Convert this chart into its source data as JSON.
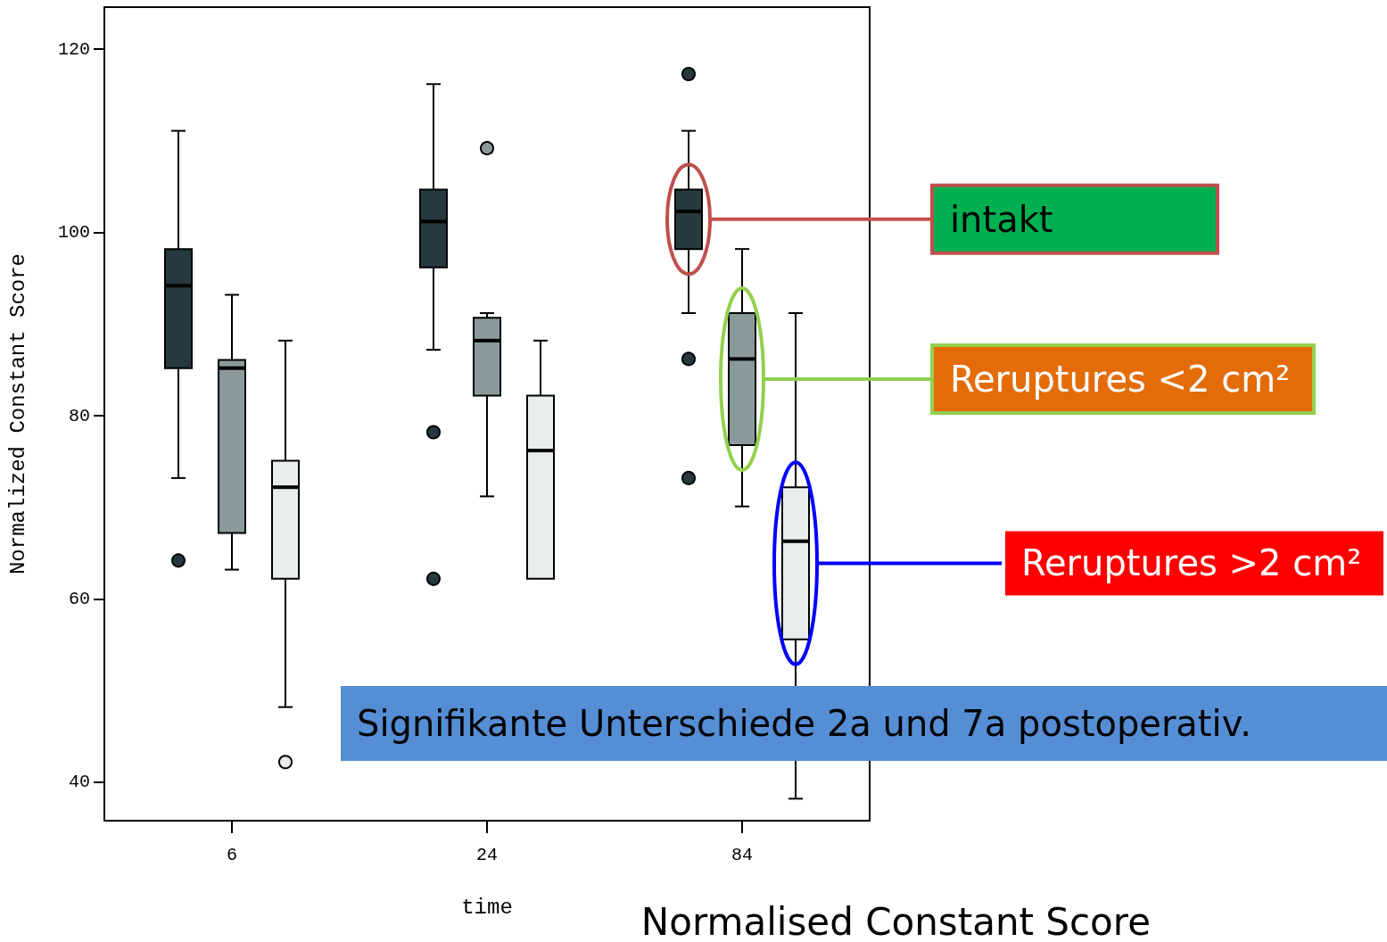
{
  "chart_data": {
    "type": "box",
    "title": "Normalised Constant Score",
    "xlabel": "time",
    "ylabel": "Normalized Constant Score",
    "categories": [
      "6",
      "24",
      "84"
    ],
    "ylim": [
      35.8,
      124.6
    ],
    "yticks": [
      40,
      60,
      80,
      100,
      120
    ],
    "grid": false,
    "legend": false,
    "series": [
      {
        "name": "intakt",
        "color": "#263a3e",
        "boxes": [
          {
            "low": 73.2,
            "q1": 85.2,
            "median": 94.2,
            "q3": 98.2,
            "high": 111.1,
            "outliers": [
              64.2
            ]
          },
          {
            "low": 87.2,
            "q1": 96.2,
            "median": 101.2,
            "q3": 104.7,
            "high": 116.2,
            "outliers": [
              78.2,
              62.2
            ]
          },
          {
            "low": 91.2,
            "q1": 98.2,
            "median": 102.3,
            "q3": 104.7,
            "high": 111.1,
            "outliers": [
              117.3,
              86.2,
              73.2
            ]
          }
        ]
      },
      {
        "name": "Reruptures <2 cm²",
        "color": "#8a9a9a",
        "boxes": [
          {
            "low": 63.2,
            "q1": 67.2,
            "median": 85.2,
            "q3": 86.1,
            "high": 93.2
          },
          {
            "low": 71.2,
            "q1": 82.2,
            "median": 88.2,
            "q3": 90.7,
            "high": 91.2,
            "outliers": [
              109.2
            ]
          },
          {
            "low": 70.1,
            "q1": 76.8,
            "median": 86.2,
            "q3": 91.2,
            "high": 98.2
          }
        ]
      },
      {
        "name": "Reruptures >2 cm²",
        "color": "#e8eeee",
        "boxes": [
          {
            "low": 48.2,
            "q1": 62.2,
            "median": 72.2,
            "q3": 75.1,
            "high": 88.2,
            "outliers": [
              42.2
            ]
          },
          {
            "low": null,
            "q1": 62.2,
            "median": 76.2,
            "q3": 82.2,
            "high": 88.2
          },
          {
            "low": 38.2,
            "q1": 55.6,
            "median": 66.3,
            "q3": 72.2,
            "high": 91.2
          }
        ]
      }
    ],
    "annotations": [
      "Signifikante Unterschiede 2a und 7a postoperativ."
    ]
  }
}
